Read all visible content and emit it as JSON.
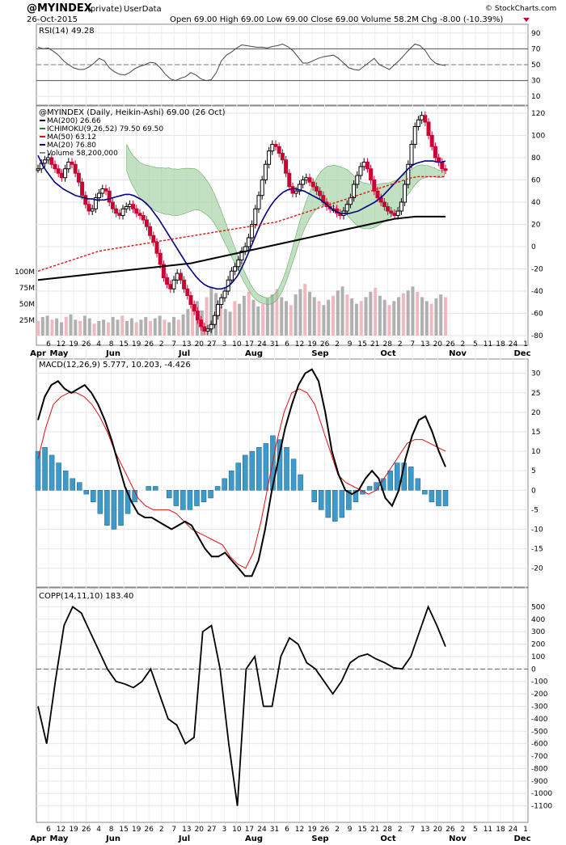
{
  "header": {
    "symbol": "@MYINDEX",
    "privacy": "(private)",
    "source": "UserData",
    "date": "26-Oct-2015",
    "quote": "Open 69.00   High 69.00   Low 69.00   Close 69.00   Volume 58.2M   Chg -8.00 (-10.39%)",
    "brand": "© StockCharts.com"
  },
  "colors": {
    "up": "#000000",
    "down": "#cc0033",
    "ma20": "#000080",
    "ma50": "#dd1111",
    "ma200": "#000000",
    "cloud_green": "#8fc98f",
    "cloud_red": "#f0aab4",
    "histogram": "#3d9ac9",
    "volume": "#b0b0b0"
  },
  "x_axis": {
    "day_ticks": [
      "6",
      "12",
      "19",
      "26",
      "4",
      "8",
      "15",
      "19",
      "26",
      "2",
      "7",
      "13",
      "20",
      "27",
      "3",
      "10",
      "17",
      "24",
      "31",
      "6",
      "12",
      "19",
      "26",
      "2",
      "9",
      "15",
      "21",
      "28",
      "2",
      "7",
      "13",
      "20",
      "26",
      "2",
      "5",
      "11",
      "18",
      "24",
      "1"
    ],
    "months": [
      "Apr",
      "May",
      "Jun",
      "Jul",
      "Aug",
      "Sep",
      "Oct",
      "Nov",
      "Dec"
    ]
  },
  "chart_data": [
    {
      "type": "line",
      "id": "rsi",
      "title": "RSI(14) 49.28",
      "ylim": [
        0,
        100
      ],
      "yticks": [
        10,
        30,
        50,
        70,
        90
      ],
      "series": [
        {
          "name": "RSI(14)",
          "values": [
            72,
            70,
            71,
            67,
            62,
            55,
            50,
            46,
            44,
            44,
            47,
            52,
            58,
            55,
            46,
            41,
            38,
            37,
            40,
            45,
            48,
            50,
            53,
            52,
            46,
            38,
            32,
            30,
            33,
            35,
            40,
            37,
            32,
            30,
            31,
            40,
            55,
            62,
            66,
            71,
            75,
            74,
            73,
            72,
            72,
            71,
            73,
            74,
            76,
            73,
            68,
            60,
            52,
            52,
            55,
            58,
            60,
            61,
            62,
            58,
            52,
            46,
            44,
            43,
            48,
            53,
            58,
            50,
            47,
            44,
            50,
            56,
            63,
            70,
            76,
            74,
            68,
            58,
            52,
            50,
            49
          ]
        }
      ]
    },
    {
      "type": "candlestick",
      "id": "price",
      "title": "@MYINDEX (Daily, Heikin-Ashi) 69.00 (26 Oct)",
      "ylim": [
        -80,
        120
      ],
      "yticks": [
        -80,
        -60,
        -40,
        -20,
        0,
        20,
        40,
        60,
        80,
        100,
        120
      ],
      "volume_ticks": [
        "25M",
        "50M",
        "75M",
        "100M"
      ],
      "legend": [
        {
          "label": "MA(200) 26.66"
        },
        {
          "label": "ICHIMOKU(9,26,52) 79.50 69.50"
        },
        {
          "label": "MA(50) 63.12"
        },
        {
          "label": "MA(20) 76.80"
        },
        {
          "label": "Volume 58,200,000"
        }
      ],
      "close": [
        70,
        75,
        78,
        80,
        74,
        70,
        66,
        62,
        70,
        76,
        74,
        66,
        58,
        46,
        38,
        32,
        34,
        44,
        48,
        52,
        50,
        40,
        34,
        30,
        28,
        34,
        36,
        38,
        34,
        30,
        28,
        24,
        18,
        10,
        4,
        -6,
        -16,
        -28,
        -34,
        -38,
        -30,
        -24,
        -30,
        -38,
        -44,
        -52,
        -58,
        -66,
        -72,
        -76,
        -74,
        -70,
        -62,
        -52,
        -46,
        -40,
        -30,
        -22,
        -18,
        -12,
        -4,
        0,
        8,
        20,
        34,
        46,
        60,
        74,
        86,
        92,
        90,
        84,
        78,
        66,
        54,
        48,
        50,
        56,
        60,
        62,
        58,
        54,
        50,
        46,
        40,
        36,
        34,
        34,
        30,
        28,
        32,
        38,
        44,
        56,
        64,
        72,
        76,
        70,
        60,
        50,
        44,
        40,
        36,
        32,
        30,
        28,
        32,
        40,
        56,
        74,
        92,
        108,
        114,
        118,
        112,
        100,
        90,
        80,
        76,
        70,
        69
      ],
      "ma20": [
        82,
        74,
        68,
        63,
        58,
        55,
        52,
        50,
        48,
        46,
        45,
        44,
        43,
        43,
        42,
        42,
        42,
        43,
        44,
        45,
        46,
        47,
        47,
        46,
        44,
        42,
        39,
        35,
        30,
        25,
        19,
        13,
        7,
        1,
        -5,
        -11,
        -17,
        -22,
        -27,
        -31,
        -34,
        -36,
        -37,
        -38,
        -38,
        -37,
        -35,
        -31,
        -26,
        -19,
        -11,
        -2,
        7,
        16,
        24,
        31,
        37,
        42,
        46,
        49,
        51,
        52,
        52,
        51,
        50,
        48,
        46,
        44,
        42,
        39,
        36,
        33,
        31,
        30,
        30,
        30,
        31,
        32,
        34,
        36,
        38,
        40,
        43,
        46,
        50,
        54,
        58,
        62,
        66,
        70,
        73,
        75,
        76,
        77,
        77,
        77,
        76,
        76,
        77
      ],
      "ma50": [
        -22,
        -20,
        -18,
        -16,
        -14,
        -12,
        -10,
        -8,
        -6,
        -4,
        -3,
        -2,
        -1,
        0,
        1,
        2,
        3,
        4,
        5,
        6,
        7,
        8,
        9,
        10,
        11,
        12,
        13,
        14,
        15,
        16,
        17,
        18,
        19,
        20,
        21,
        22,
        24,
        26,
        28,
        30,
        32,
        34,
        36,
        38,
        40,
        42,
        44,
        46,
        48,
        50,
        52,
        54,
        56,
        58,
        60,
        62,
        63,
        63,
        63,
        63,
        63
      ],
      "ma200": [
        -30,
        -29,
        -28,
        -27,
        -26,
        -25,
        -24,
        -23,
        -22,
        -21,
        -20,
        -19,
        -18,
        -17,
        -16,
        -15,
        -13,
        -11,
        -9,
        -7,
        -5,
        -3,
        -1,
        1,
        3,
        5,
        7,
        9,
        11,
        13,
        15,
        17,
        19,
        21,
        23,
        25,
        26,
        27,
        27,
        27,
        27
      ],
      "volume_m": [
        22,
        28,
        30,
        24,
        26,
        20,
        28,
        32,
        24,
        22,
        30,
        26,
        18,
        22,
        24,
        20,
        28,
        24,
        30,
        22,
        26,
        20,
        24,
        28,
        22,
        26,
        30,
        24,
        20,
        28,
        24,
        32,
        40,
        46,
        52,
        38,
        58,
        72,
        64,
        44,
        40,
        36,
        52,
        48,
        60,
        66,
        54,
        44,
        48,
        56,
        62,
        70,
        58,
        52,
        46,
        62,
        70,
        78,
        66,
        58,
        52,
        46,
        54,
        60,
        68,
        74,
        62,
        56,
        48,
        52,
        58,
        66,
        72,
        60,
        54,
        46,
        52,
        58,
        64,
        68,
        74,
        66,
        58,
        52,
        48,
        56,
        62,
        58
      ]
    },
    {
      "type": "line",
      "id": "macd",
      "title": "MACD(12,26,9) 5.777, 10.203, -4.426",
      "ylim": [
        -24,
        32
      ],
      "yticks": [
        -20,
        -15,
        -10,
        -5,
        0,
        5,
        10,
        15,
        20,
        25,
        30
      ],
      "series": [
        {
          "name": "MACD",
          "values": [
            18,
            24,
            27,
            28,
            26,
            25,
            26,
            27,
            25,
            22,
            18,
            13,
            7,
            1,
            -3,
            -6,
            -7,
            -7,
            -8,
            -9,
            -10,
            -9,
            -8,
            -9,
            -12,
            -15,
            -17,
            -17,
            -16,
            -18,
            -20,
            -22,
            -22,
            -18,
            -10,
            0,
            8,
            16,
            22,
            27,
            30,
            31,
            28,
            20,
            10,
            4,
            0,
            -1,
            0,
            3,
            5,
            3,
            -2,
            -4,
            0,
            8,
            14,
            18,
            19,
            15,
            10,
            6
          ]
        },
        {
          "name": "Signal",
          "values": [
            8,
            16,
            22,
            24,
            25,
            25,
            24,
            22,
            19,
            15,
            10,
            6,
            2,
            -2,
            -4,
            -5,
            -5,
            -5,
            -6,
            -8,
            -10,
            -11,
            -12,
            -13,
            -14,
            -17,
            -19,
            -20,
            -16,
            -8,
            2,
            12,
            20,
            25,
            26,
            25,
            22,
            16,
            10,
            4,
            2,
            1,
            0,
            -1,
            0,
            3,
            6,
            9,
            12,
            13,
            13,
            12,
            11,
            10
          ]
        },
        {
          "name": "Histogram",
          "values": [
            10,
            11,
            9,
            7,
            5,
            3,
            2,
            -1,
            -3,
            -6,
            -9,
            -10,
            -9,
            -6,
            -3,
            0,
            1,
            1,
            0,
            -2,
            -4,
            -5,
            -5,
            -4,
            -3,
            -2,
            1,
            3,
            5,
            7,
            9,
            10,
            11,
            12,
            14,
            13,
            11,
            8,
            4,
            0,
            -3,
            -5,
            -7,
            -8,
            -7,
            -5,
            -3,
            -1,
            1,
            2,
            3,
            5,
            7,
            7,
            6,
            3,
            -1,
            -3,
            -4,
            -4
          ]
        }
      ]
    },
    {
      "type": "line",
      "id": "copp",
      "title": "COPP(14,11,10) 183.40",
      "ylim": [
        -1200,
        600
      ],
      "yticks": [
        -1100,
        -1000,
        -900,
        -800,
        -700,
        -600,
        -500,
        -400,
        -300,
        -200,
        -100,
        0,
        100,
        200,
        300,
        400,
        500
      ],
      "series": [
        {
          "name": "COPP(14,11,10)",
          "values": [
            -300,
            -600,
            -100,
            350,
            500,
            450,
            300,
            150,
            0,
            -100,
            -120,
            -150,
            -100,
            0,
            -200,
            -400,
            -450,
            -600,
            -550,
            300,
            350,
            0,
            -600,
            -1100,
            0,
            100,
            -300,
            -300,
            100,
            250,
            200,
            50,
            0,
            -100,
            -200,
            -100,
            50,
            100,
            120,
            80,
            50,
            10,
            0,
            100,
            300,
            500,
            350,
            180
          ]
        }
      ]
    }
  ]
}
